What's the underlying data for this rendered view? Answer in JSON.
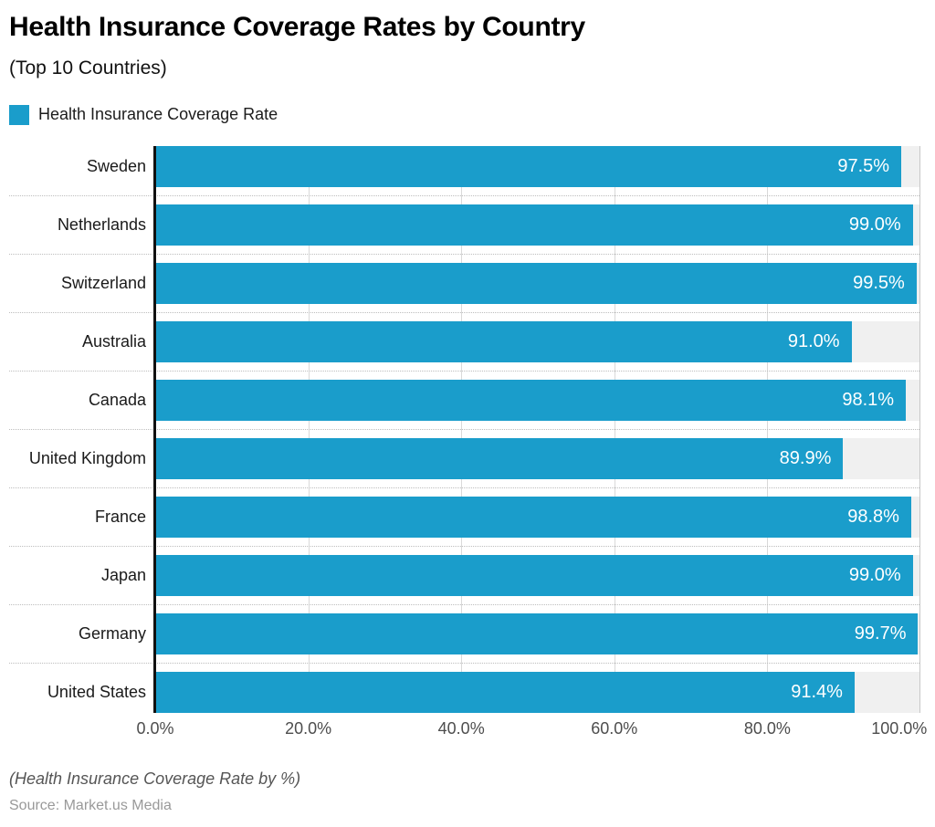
{
  "header": {
    "title": "Health Insurance Coverage Rates by Country",
    "subtitle": "(Top 10 Countries)"
  },
  "legend": {
    "label": "Health Insurance Coverage Rate",
    "swatch_color": "#1a9dcb"
  },
  "chart_data": {
    "type": "bar",
    "orientation": "horizontal",
    "title": "Health Insurance Coverage Rates by Country",
    "subtitle": "(Top 10 Countries)",
    "series_name": "Health Insurance Coverage Rate",
    "categories": [
      "Sweden",
      "Netherlands",
      "Switzerland",
      "Australia",
      "Canada",
      "United Kingdom",
      "France",
      "Japan",
      "Germany",
      "United States"
    ],
    "values": [
      97.5,
      99.0,
      99.5,
      91.0,
      98.1,
      89.9,
      98.8,
      99.0,
      99.7,
      91.4
    ],
    "value_labels": [
      "97.5%",
      "99.0%",
      "99.5%",
      "91.0%",
      "98.1%",
      "89.9%",
      "98.8%",
      "99.0%",
      "99.7%",
      "91.4%"
    ],
    "x_ticks": [
      "0.0%",
      "20.0%",
      "40.0%",
      "60.0%",
      "80.0%",
      "100.0%"
    ],
    "x_tick_values": [
      0,
      20,
      40,
      60,
      80,
      100
    ],
    "xlim": [
      0,
      100
    ],
    "xlabel": "",
    "ylabel": "",
    "grid": true,
    "legend_position": "top-left",
    "bar_color": "#1a9dcb",
    "track_color": "#f0f0f0",
    "value_label_color": "#ffffff"
  },
  "footer": {
    "note": "(Health Insurance Coverage Rate by %)",
    "source": "Source: Market.us Media"
  }
}
